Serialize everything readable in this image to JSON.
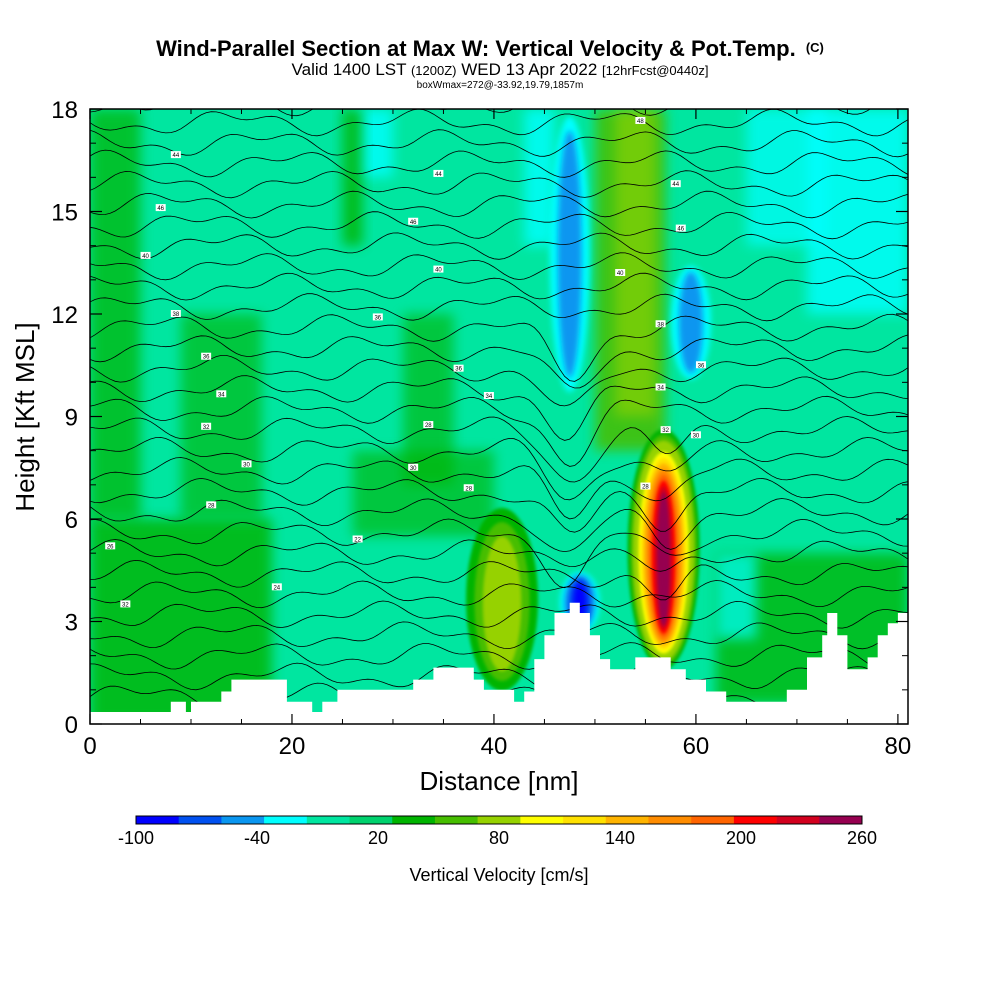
{
  "title": {
    "main": "Wind-Parallel Section at Max W: Vertical Velocity & Pot.Temp.",
    "main_suffix": "(C)",
    "valid_prefix": "Valid 1400 LST",
    "valid_zulu": "(1200Z)",
    "valid_date": "WED 13 Apr 2022",
    "valid_fcst": "[12hrFcst@0440z]",
    "box_info": "boxWmax=272@-33.92,19.79,1857m"
  },
  "chart_data": {
    "type": "heatmap",
    "xlabel": "Distance [nm]",
    "ylabel": "Height [Kft MSL]",
    "xlim": [
      0,
      81
    ],
    "ylim": [
      0,
      18
    ],
    "x_ticks": [
      0,
      20,
      40,
      60,
      80
    ],
    "y_ticks": [
      0,
      3,
      6,
      9,
      12,
      15,
      18
    ],
    "grid": false,
    "terrain_profile": [
      [
        0,
        0.35
      ],
      [
        8,
        0.35
      ],
      [
        8,
        0.65
      ],
      [
        9.5,
        0.65
      ],
      [
        9.5,
        0.35
      ],
      [
        10,
        0.35
      ],
      [
        10,
        0.65
      ],
      [
        13,
        0.65
      ],
      [
        13,
        0.95
      ],
      [
        14,
        0.95
      ],
      [
        14,
        1.3
      ],
      [
        19.5,
        1.3
      ],
      [
        19.5,
        0.65
      ],
      [
        22,
        0.65
      ],
      [
        22,
        0.35
      ],
      [
        23,
        0.35
      ],
      [
        23,
        0.65
      ],
      [
        24.5,
        0.65
      ],
      [
        24.5,
        1.0
      ],
      [
        32,
        1.0
      ],
      [
        32,
        1.3
      ],
      [
        34,
        1.3
      ],
      [
        34,
        1.65
      ],
      [
        38,
        1.65
      ],
      [
        38,
        1.3
      ],
      [
        39,
        1.3
      ],
      [
        39,
        1.0
      ],
      [
        42,
        1.0
      ],
      [
        42,
        0.65
      ],
      [
        43,
        0.65
      ],
      [
        43,
        0.95
      ],
      [
        44,
        0.95
      ],
      [
        44,
        1.9
      ],
      [
        45,
        1.9
      ],
      [
        45,
        2.6
      ],
      [
        46,
        2.6
      ],
      [
        46,
        3.25
      ],
      [
        47.5,
        3.25
      ],
      [
        47.5,
        3.55
      ],
      [
        48.5,
        3.55
      ],
      [
        48.5,
        3.25
      ],
      [
        49.5,
        3.25
      ],
      [
        49.5,
        2.6
      ],
      [
        50.5,
        2.6
      ],
      [
        50.5,
        1.9
      ],
      [
        51.5,
        1.9
      ],
      [
        51.5,
        1.6
      ],
      [
        54,
        1.6
      ],
      [
        54,
        1.95
      ],
      [
        57.5,
        1.95
      ],
      [
        57.5,
        1.6
      ],
      [
        59,
        1.6
      ],
      [
        59,
        1.3
      ],
      [
        61,
        1.3
      ],
      [
        61,
        0.95
      ],
      [
        63,
        0.95
      ],
      [
        63,
        0.65
      ],
      [
        69,
        0.65
      ],
      [
        69,
        1.0
      ],
      [
        71,
        1.0
      ],
      [
        71,
        1.95
      ],
      [
        72.5,
        1.95
      ],
      [
        72.5,
        2.6
      ],
      [
        73,
        2.6
      ],
      [
        73,
        3.25
      ],
      [
        74,
        3.25
      ],
      [
        74,
        2.6
      ],
      [
        75,
        2.6
      ],
      [
        75,
        1.6
      ],
      [
        77,
        1.6
      ],
      [
        77,
        1.95
      ],
      [
        78,
        1.95
      ],
      [
        78,
        2.6
      ],
      [
        79,
        2.6
      ],
      [
        79,
        2.95
      ],
      [
        80,
        2.95
      ],
      [
        80,
        3.25
      ],
      [
        81,
        3.25
      ]
    ],
    "updraft_cores": [
      {
        "x": 40.8,
        "y_min": 1.2,
        "y_max": 6.3,
        "peak_w": 90
      },
      {
        "x": 56.8,
        "y_min": 1.9,
        "y_max": 8.6,
        "peak_w": 272
      }
    ],
    "downdraft_bands": [
      {
        "x": 47.5,
        "y_min": 9.5,
        "y_max": 18,
        "min_w": -60
      },
      {
        "x": 48.5,
        "y_min": 2.6,
        "y_max": 4.5,
        "min_w": -90
      },
      {
        "x": 59.5,
        "y_min": 10.0,
        "y_max": 13.5,
        "min_w": -50
      }
    ],
    "isentrope_labels": [
      {
        "x": 8.5,
        "y": 16.65,
        "text": "44"
      },
      {
        "x": 7,
        "y": 15.1,
        "text": "46"
      },
      {
        "x": 5.5,
        "y": 13.7,
        "text": "40"
      },
      {
        "x": 8.5,
        "y": 12.0,
        "text": "38"
      },
      {
        "x": 11.5,
        "y": 10.75,
        "text": "36"
      },
      {
        "x": 13,
        "y": 9.65,
        "text": "34"
      },
      {
        "x": 11.5,
        "y": 8.7,
        "text": "32"
      },
      {
        "x": 15.5,
        "y": 7.6,
        "text": "30"
      },
      {
        "x": 12,
        "y": 6.4,
        "text": "28"
      },
      {
        "x": 2,
        "y": 5.2,
        "text": "26"
      },
      {
        "x": 3.5,
        "y": 3.5,
        "text": "32"
      },
      {
        "x": 18.5,
        "y": 4.0,
        "text": "24"
      },
      {
        "x": 26.5,
        "y": 5.4,
        "text": "22"
      },
      {
        "x": 28.5,
        "y": 11.9,
        "text": "36"
      },
      {
        "x": 34.5,
        "y": 16.1,
        "text": "44"
      },
      {
        "x": 32,
        "y": 14.7,
        "text": "46"
      },
      {
        "x": 34.5,
        "y": 13.3,
        "text": "40"
      },
      {
        "x": 36.5,
        "y": 10.4,
        "text": "36"
      },
      {
        "x": 33.5,
        "y": 8.75,
        "text": "28"
      },
      {
        "x": 39.5,
        "y": 9.6,
        "text": "34"
      },
      {
        "x": 32,
        "y": 7.5,
        "text": "30"
      },
      {
        "x": 37.5,
        "y": 6.9,
        "text": "28"
      },
      {
        "x": 54.5,
        "y": 17.65,
        "text": "48"
      },
      {
        "x": 58,
        "y": 15.8,
        "text": "44"
      },
      {
        "x": 58.5,
        "y": 14.5,
        "text": "46"
      },
      {
        "x": 52.5,
        "y": 13.2,
        "text": "40"
      },
      {
        "x": 56.5,
        "y": 11.7,
        "text": "38"
      },
      {
        "x": 60.5,
        "y": 10.5,
        "text": "36"
      },
      {
        "x": 56.5,
        "y": 9.85,
        "text": "34"
      },
      {
        "x": 57,
        "y": 8.6,
        "text": "32"
      },
      {
        "x": 60,
        "y": 8.45,
        "text": "30"
      },
      {
        "x": 55,
        "y": 6.95,
        "text": "28"
      }
    ]
  },
  "colorbar": {
    "title": "Vertical Velocity [cm/s]",
    "colors": [
      "#0000ff",
      "#0050f0",
      "#0a96f0",
      "#00ffff",
      "#00e6a0",
      "#00d26e",
      "#00b400",
      "#46be00",
      "#96d200",
      "#ffff00",
      "#ffe100",
      "#ffb400",
      "#ff8c00",
      "#ff6400",
      "#ff0000",
      "#d2001e",
      "#960050"
    ],
    "tick_labels": [
      "-100",
      "-40",
      "20",
      "80",
      "140",
      "200",
      "260"
    ],
    "tick_values": [
      -100,
      -40,
      20,
      80,
      140,
      200,
      260
    ],
    "vmin": -100,
    "vmax": 260
  }
}
